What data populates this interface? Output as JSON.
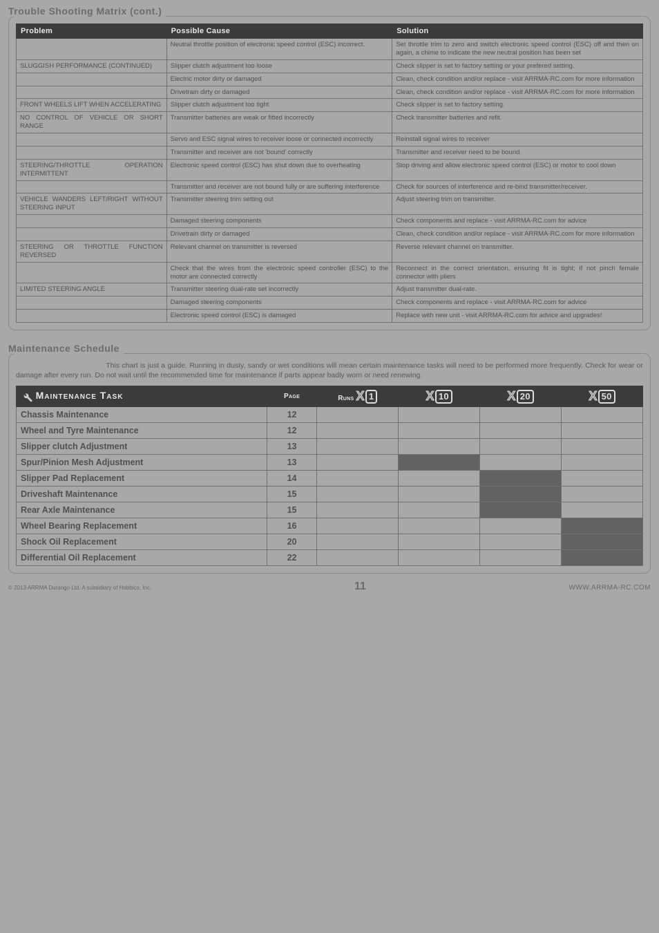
{
  "troubleTitle": "Trouble Shooting Matrix (cont.)",
  "troubleHeaders": {
    "c1": "Problem",
    "c2": "Possible Cause",
    "c3": "Solution"
  },
  "trouble": [
    {
      "p": "",
      "c": "Neutral throttle position of electronic speed control (ESC) incorrect.",
      "s": "Set throttle trim to zero and switch electronic speed control (ESC) off and then on again, a chime to indicate the new neutral position has been set"
    },
    {
      "p": "SLUGGISH PERFORMANCE (CONTINUED)",
      "c": "Slipper clutch adjustment too loose",
      "s": "Check slipper is set to factory setting or your prefered setting."
    },
    {
      "p": "",
      "c": "Electric motor dirty or damaged",
      "s": "Clean, check condition and/or replace - visit ARRMA-RC.com for more information"
    },
    {
      "p": "",
      "c": "Drivetrain dirty or damaged",
      "s": "Clean, check condition and/or replace - visit ARRMA-RC.com for more information"
    },
    {
      "p": "FRONT WHEELS LIFT WHEN ACCELERATING",
      "c": "Slipper clutch adjustment too tight",
      "s": "Check slipper is set to factory setting."
    },
    {
      "p": "NO CONTROL OF VEHICLE OR SHORT RANGE",
      "c": "Transmitter batteries are weak or fitted incorrectly",
      "s": "Check transmitter batteries and refit."
    },
    {
      "p": "",
      "c": "Servo and ESC signal wires to receiver loose or connected incorrectly",
      "s": "Reinstall signal wires to receiver"
    },
    {
      "p": "",
      "c": "Transmitter and receiver are not 'bound' correctly",
      "s": "Transmitter and receiver need to be bound."
    },
    {
      "p": "STEERING/THROTTLE OPERATION INTERMITTENT",
      "c": "Electronic speed control (ESC) has shut down due to overheating",
      "s": "Stop driving and allow electronic speed control (ESC) or motor to cool down"
    },
    {
      "p": "",
      "c": "Transmitter and receiver are not bound fully or are suffering interference",
      "s": "Check for sources of interference and re-bind transmitter/receiver."
    },
    {
      "p": "VEHICLE WANDERS LEFT/RIGHT WITHOUT STEERING INPUT",
      "c": "Transmitter steering trim setting out",
      "s": "Adjust steering trim on transmitter."
    },
    {
      "p": "",
      "c": "Damaged steering components",
      "s": "Check components and replace - visit ARRMA-RC.com for advice"
    },
    {
      "p": "",
      "c": "Drivetrain dirty or damaged",
      "s": "Clean, check condition and/or replace - visit ARRMA-RC.com for more information"
    },
    {
      "p": "STEERING OR THROTTLE FUNCTION REVERSED",
      "c": "Relevant channel on transmitter is reversed",
      "s": "Reverse relevant channel on transmitter."
    },
    {
      "p": "",
      "c": "Check that the wires from the electronic speed controller (ESC) to the motor are connected correctly",
      "s": "Reconnect in the correct orientation, ensuring fit is tight; if not pinch female connector with pliers"
    },
    {
      "p": "LIMITED STEERING ANGLE",
      "c": "Transmitter steering dual-rate set incorrectly",
      "s": "Adjust transmitter dual-rate."
    },
    {
      "p": "",
      "c": "Damaged steering components",
      "s": "Check components and replace - visit ARRMA-RC.com for advice"
    },
    {
      "p": "",
      "c": "Electronic speed control (ESC) is damaged",
      "s": "Replace with new unit - visit ARRMA-RC.com for advice and upgrades!"
    }
  ],
  "maintTitle": "Maintenance Schedule",
  "maintIntro": "This chart is just a guide. Running in dusty, sandy or wet conditions will mean certain maintenance tasks will need to be performed more frequently. Check for wear or damage after every run. Do not wait until the recommended time for maintenance if parts appear badly worn or need renewing.",
  "maintHeaders": {
    "task": "Maintenance Task",
    "page": "Page",
    "runs": "Runs",
    "x1": "X1",
    "x10": "X10",
    "x20": "X20",
    "x50": "X50"
  },
  "maint": [
    {
      "task": "Chassis Maintenance",
      "page": "12",
      "dark": []
    },
    {
      "task": "Wheel and Tyre Maintenance",
      "page": "12",
      "dark": []
    },
    {
      "task": "Slipper clutch Adjustment",
      "page": "13",
      "dark": []
    },
    {
      "task": "Spur/Pinion Mesh Adjustment",
      "page": "13",
      "dark": [
        "x10"
      ]
    },
    {
      "task": "Slipper Pad Replacement",
      "page": "14",
      "dark": [
        "x20"
      ]
    },
    {
      "task": "Driveshaft Maintenance",
      "page": "15",
      "dark": [
        "x20"
      ]
    },
    {
      "task": "Rear Axle Maintenance",
      "page": "15",
      "dark": [
        "x20"
      ]
    },
    {
      "task": "Wheel Bearing Replacement",
      "page": "16",
      "dark": [
        "x50"
      ]
    },
    {
      "task": "Shock Oil Replacement",
      "page": "20",
      "dark": [
        "x50"
      ]
    },
    {
      "task": "Differential Oil Replacement",
      "page": "22",
      "dark": [
        "x50"
      ]
    }
  ],
  "footer": {
    "copy": "© 2013 ARRMA Durango Ltd. A subsidiary of Hobbico, Inc.",
    "page": "11",
    "url": "WWW.ARRMA-RC.COM"
  }
}
